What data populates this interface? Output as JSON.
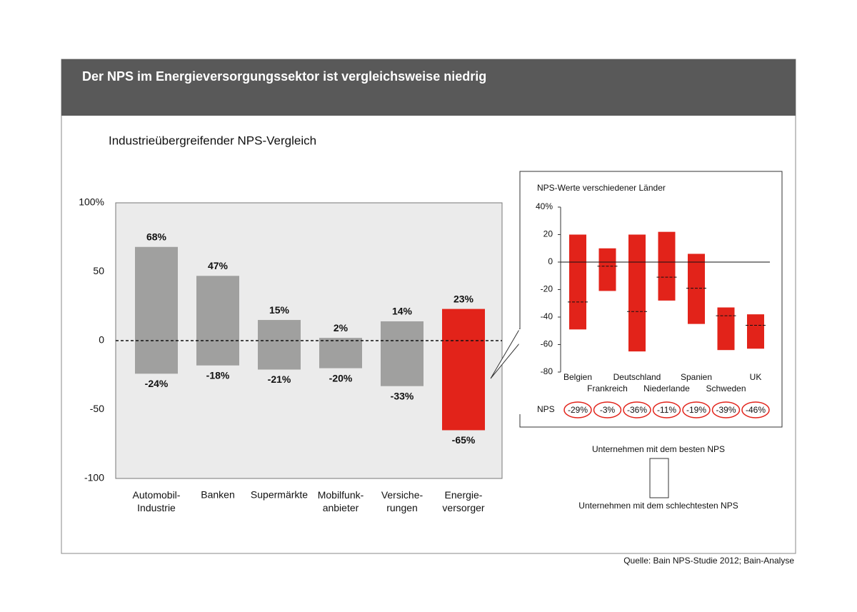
{
  "title": "Der NPS im Energieversorgungssektor ist vergleichsweise niedrig",
  "source": "Quelle: Bain NPS-Studie 2012; Bain-Analyse",
  "chart_data": [
    {
      "type": "range_bar",
      "title": "Industrieübergreifender NPS-Vergleich",
      "categories": [
        "Automobil-\nIndustrie",
        "Banken",
        "Supermärkte",
        "Mobilfunk-\nanbieter",
        "Versiche-\nrungen",
        "Energie-\nversorger"
      ],
      "colors": [
        "#a0a09f",
        "#a0a09f",
        "#a0a09f",
        "#a0a09f",
        "#a0a09f",
        "#e2231a"
      ],
      "series": [
        {
          "values": [
            68,
            47,
            15,
            2,
            14,
            23
          ],
          "value_labels": [
            "68%",
            "47%",
            "15%",
            "2%",
            "14%",
            "23%"
          ]
        },
        {
          "values": [
            -24,
            -18,
            -21,
            -20,
            -33,
            -65
          ],
          "value_labels": [
            "-24%",
            "-18%",
            "-21%",
            "-20%",
            "-33%",
            "-65%"
          ]
        }
      ],
      "ylim": [
        -100,
        100
      ],
      "yticks": [
        {
          "value": 100,
          "label": "100%"
        },
        50,
        0,
        -50,
        -100
      ]
    },
    {
      "type": "range_bar",
      "title": "NPS-Werte verschiedener Länder",
      "categories": [
        "Belgien",
        "Frankreich",
        "Deutschland",
        "Niederlande",
        "Spanien",
        "Schweden",
        "UK"
      ],
      "color": "#e2231a",
      "series": [
        {
          "name": "Unternehmen mit dem besten NPS",
          "values": [
            20,
            10,
            20,
            22,
            6,
            -33,
            -38
          ]
        },
        {
          "name": "Unternehmen mit dem schlechtesten NPS",
          "values": [
            -49,
            -21,
            -65,
            -28,
            -45,
            -64,
            -63
          ]
        },
        {
          "name": "NPS",
          "values": [
            -29,
            -3,
            -36,
            -11,
            -19,
            -39,
            -46
          ],
          "value_labels": [
            "-29%",
            "-3%",
            "-36%",
            "-11%",
            "-19%",
            "-39%",
            "-46%"
          ]
        }
      ],
      "ylim": [
        -80,
        40
      ],
      "yticks": [
        {
          "value": 40,
          "label": "40%"
        },
        20,
        0,
        -20,
        -40,
        -60,
        -80
      ]
    }
  ]
}
